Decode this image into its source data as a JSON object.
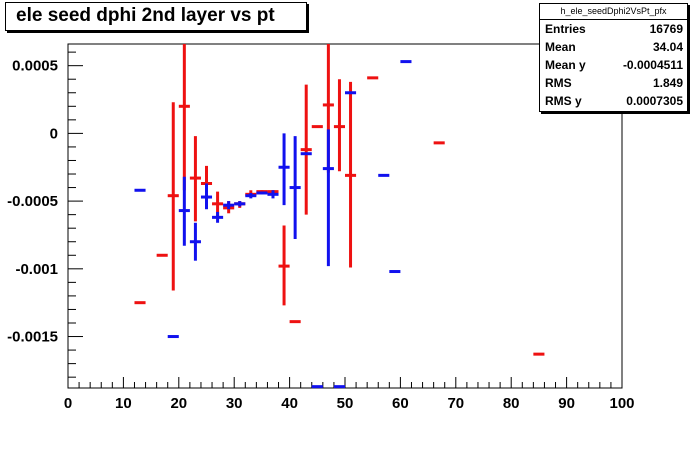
{
  "title": "ele seed dphi 2nd layer vs pt",
  "stats": {
    "name": "h_ele_seedDphi2VsPt_pfx",
    "rows": [
      {
        "label": "Entries",
        "value": "16769"
      },
      {
        "label": "Mean",
        "value": "34.04"
      },
      {
        "label": "Mean y",
        "value": "-0.0004511"
      },
      {
        "label": "RMS",
        "value": "1.849"
      },
      {
        "label": "RMS y",
        "value": "0.0007305"
      }
    ]
  },
  "chart_data": {
    "type": "scatter",
    "title": "ele seed dphi 2nd layer vs pt",
    "xlabel": "",
    "ylabel": "",
    "xlim": [
      0,
      100
    ],
    "ylim": [
      -0.00188,
      0.00066
    ],
    "xticks": [
      0,
      10,
      20,
      30,
      40,
      50,
      60,
      70,
      80,
      90,
      100
    ],
    "xtick_labels": [
      "0",
      "10",
      "20",
      "30",
      "40",
      "50",
      "60",
      "70",
      "80",
      "90",
      "100"
    ],
    "yticks": [
      0.0005,
      0,
      -0.0005,
      -0.001,
      -0.0015
    ],
    "ytick_labels": [
      "0.0005",
      "0",
      "-0.0005",
      "-0.001",
      "-0.0015"
    ],
    "grid": false,
    "series": [
      {
        "color": "#ee1111",
        "points": [
          {
            "x": 13,
            "y": -0.00125,
            "lo": -0.00125,
            "hi": -0.00125
          },
          {
            "x": 17,
            "y": -0.0009,
            "lo": -0.0009,
            "hi": -0.0009
          },
          {
            "x": 19,
            "y": -0.00046,
            "lo": -0.00116,
            "hi": 0.00023
          },
          {
            "x": 21,
            "y": 0.0002,
            "lo": -0.00042,
            "hi": 0.00066
          },
          {
            "x": 23,
            "y": -0.00033,
            "lo": -0.00065,
            "hi": -2e-05
          },
          {
            "x": 25,
            "y": -0.00037,
            "lo": -0.00055,
            "hi": -0.00024
          },
          {
            "x": 27,
            "y": -0.00052,
            "lo": -0.00062,
            "hi": -0.00043
          },
          {
            "x": 29,
            "y": -0.00055,
            "lo": -0.00059,
            "hi": -0.0005
          },
          {
            "x": 31,
            "y": -0.00052,
            "lo": -0.00055,
            "hi": -0.0005
          },
          {
            "x": 33,
            "y": -0.00045,
            "lo": -0.00047,
            "hi": -0.00042
          },
          {
            "x": 35,
            "y": -0.00043,
            "lo": -0.00044,
            "hi": -0.00042
          },
          {
            "x": 37,
            "y": -0.00043,
            "lo": -0.00044,
            "hi": -0.00042
          },
          {
            "x": 39,
            "y": -0.00098,
            "lo": -0.00127,
            "hi": -0.00068
          },
          {
            "x": 41,
            "y": -0.00139,
            "lo": -0.00139,
            "hi": -0.00139
          },
          {
            "x": 43,
            "y": -0.00012,
            "lo": -0.0006,
            "hi": 0.00036
          },
          {
            "x": 45,
            "y": 5e-05,
            "lo": 5e-05,
            "hi": 5e-05
          },
          {
            "x": 47,
            "y": 0.00021,
            "lo": -0.00029,
            "hi": 0.00066
          },
          {
            "x": 49,
            "y": 5e-05,
            "lo": -0.00028,
            "hi": 0.0004
          },
          {
            "x": 51,
            "y": -0.00031,
            "lo": -0.00099,
            "hi": 0.00038
          },
          {
            "x": 55,
            "y": 0.00041,
            "lo": 0.00041,
            "hi": 0.00041
          },
          {
            "x": 67,
            "y": -7e-05,
            "lo": -7e-05,
            "hi": -7e-05
          },
          {
            "x": 85,
            "y": -0.00163,
            "lo": -0.00163,
            "hi": -0.00163
          }
        ]
      },
      {
        "color": "#1111ee",
        "points": [
          {
            "x": 13,
            "y": -0.00042,
            "lo": -0.00042,
            "hi": -0.00042
          },
          {
            "x": 19,
            "y": -0.0015,
            "lo": -0.0015,
            "hi": -0.0015
          },
          {
            "x": 21,
            "y": -0.00057,
            "lo": -0.00083,
            "hi": -0.00032
          },
          {
            "x": 23,
            "y": -0.0008,
            "lo": -0.00094,
            "hi": -0.00066
          },
          {
            "x": 25,
            "y": -0.00047,
            "lo": -0.00056,
            "hi": -0.00037
          },
          {
            "x": 27,
            "y": -0.00062,
            "lo": -0.00066,
            "hi": -0.00058
          },
          {
            "x": 29,
            "y": -0.00053,
            "lo": -0.00056,
            "hi": -0.0005
          },
          {
            "x": 31,
            "y": -0.00052,
            "lo": -0.00054,
            "hi": -0.0005
          },
          {
            "x": 33,
            "y": -0.00046,
            "lo": -0.00048,
            "hi": -0.00044
          },
          {
            "x": 35,
            "y": -0.00044,
            "lo": -0.00045,
            "hi": -0.00043
          },
          {
            "x": 37,
            "y": -0.00045,
            "lo": -0.00048,
            "hi": -0.00042
          },
          {
            "x": 39,
            "y": -0.00025,
            "lo": -0.00053,
            "hi": 0.0
          },
          {
            "x": 41,
            "y": -0.0004,
            "lo": -0.00078,
            "hi": -2e-05
          },
          {
            "x": 43,
            "y": -0.00015,
            "lo": -0.00015,
            "hi": -0.00015
          },
          {
            "x": 45,
            "y": -0.00187,
            "lo": -0.00187,
            "hi": -0.00187
          },
          {
            "x": 47,
            "y": -0.00026,
            "lo": -0.00098,
            "hi": 3e-05
          },
          {
            "x": 49,
            "y": -0.00187,
            "lo": -0.00187,
            "hi": -0.00187
          },
          {
            "x": 51,
            "y": 0.0003,
            "lo": 0.0003,
            "hi": 0.0003
          },
          {
            "x": 57,
            "y": -0.00031,
            "lo": -0.00031,
            "hi": -0.00031
          },
          {
            "x": 59,
            "y": -0.00102,
            "lo": -0.00102,
            "hi": -0.00102
          },
          {
            "x": 61,
            "y": 0.00053,
            "lo": 0.00053,
            "hi": 0.00053
          }
        ]
      }
    ]
  }
}
